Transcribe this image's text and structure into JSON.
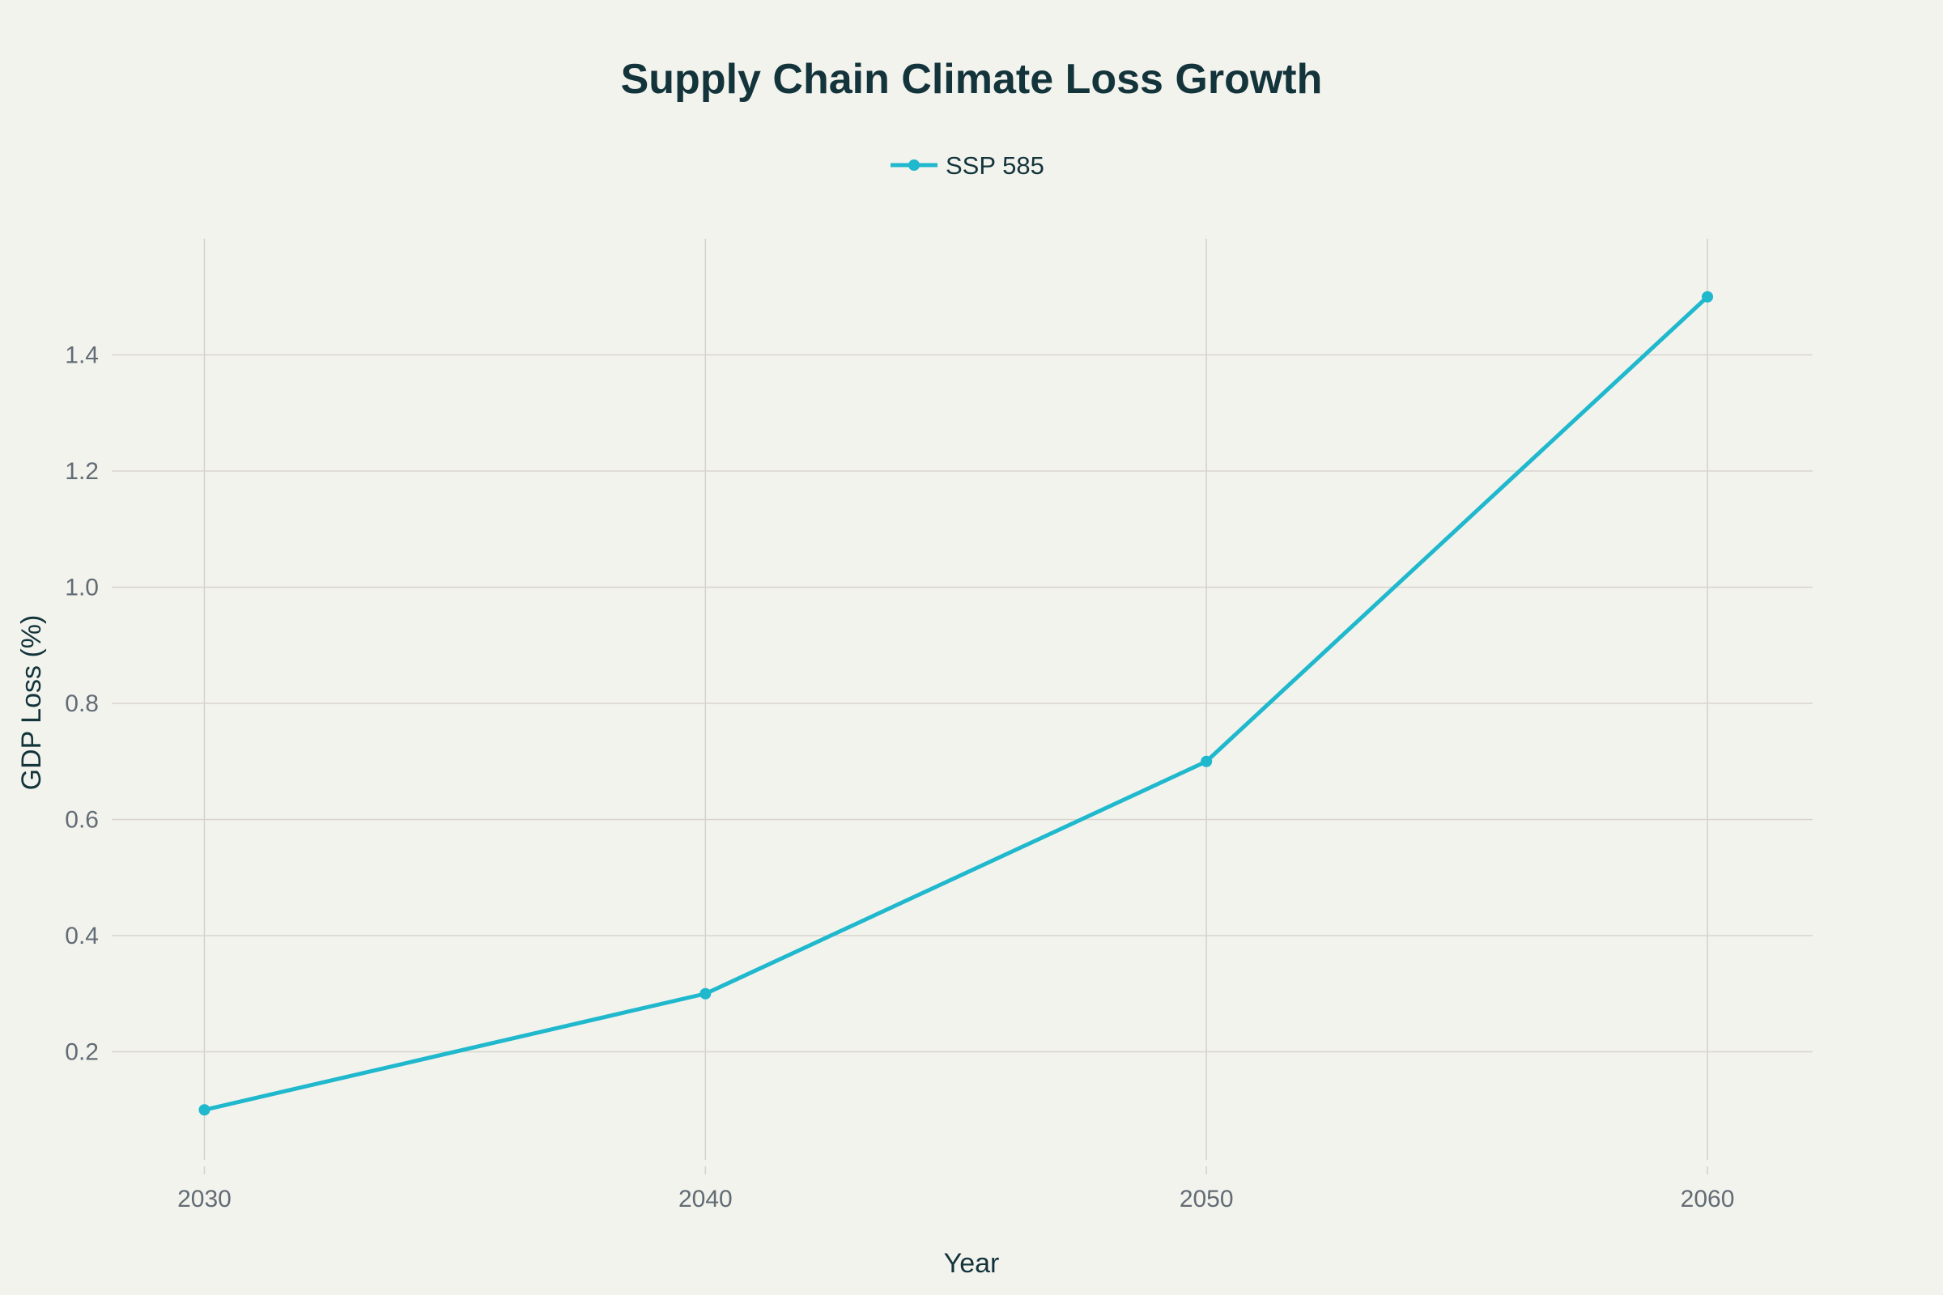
{
  "chart_data": {
    "type": "line",
    "title": "Supply Chain Climate Loss Growth",
    "xlabel": "Year",
    "ylabel": "GDP Loss (%)",
    "x": [
      2030,
      2040,
      2050,
      2060
    ],
    "series": [
      {
        "name": "SSP 585",
        "values": [
          0.1,
          0.3,
          0.7,
          1.5
        ],
        "color": "#1fb8cd"
      }
    ],
    "xticks": [
      "2030",
      "2040",
      "2050",
      "2060"
    ],
    "yticks": [
      "0.2",
      "0.4",
      "0.6",
      "0.8",
      "1.0",
      "1.2",
      "1.4"
    ],
    "xlim": [
      2028.15,
      2062.1
    ],
    "ylim": [
      0.0,
      1.6
    ],
    "grid": true,
    "legend": "top-center"
  }
}
